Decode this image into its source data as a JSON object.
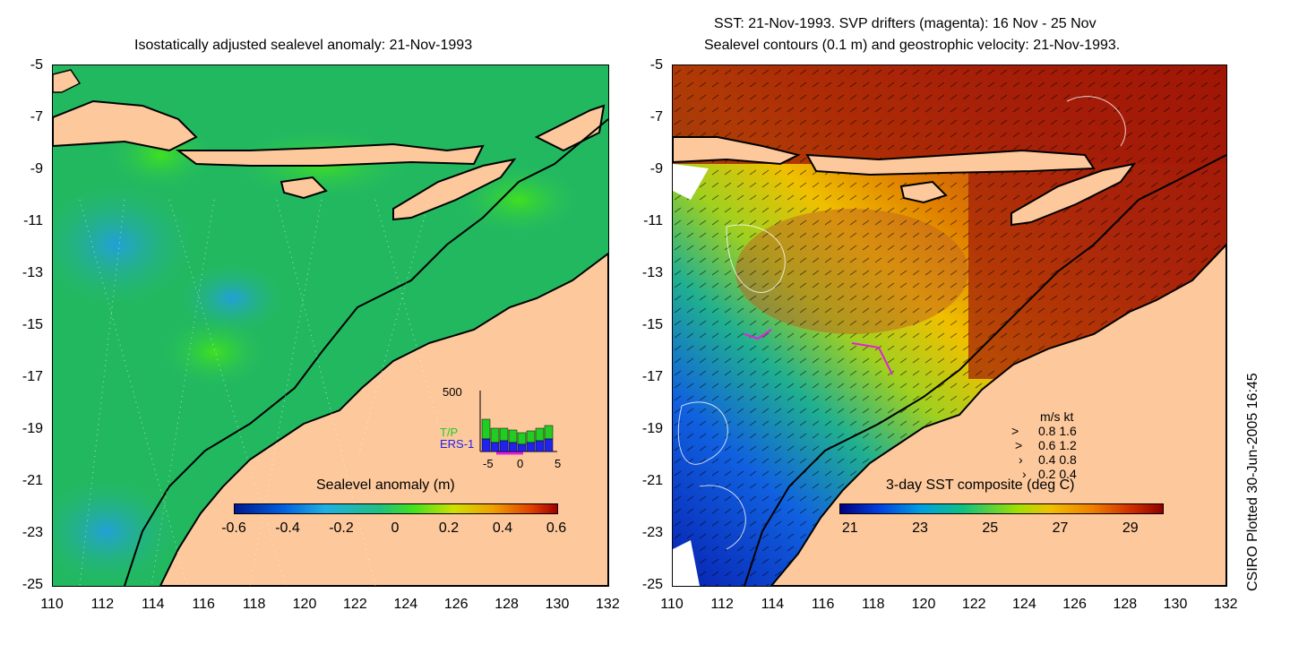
{
  "left_panel": {
    "title": "Isostatically adjusted sealevel anomaly: 21-Nov-1993",
    "y_ticks": [
      "-5",
      "-7",
      "-9",
      "-11",
      "-13",
      "-15",
      "-17",
      "-19",
      "-21",
      "-23",
      "-25"
    ],
    "x_ticks": [
      "110",
      "112",
      "114",
      "116",
      "118",
      "120",
      "122",
      "124",
      "126",
      "128",
      "130",
      "132"
    ],
    "colorbar": {
      "label": "Sealevel anomaly (m)",
      "ticks": [
        "-0.6",
        "-0.4",
        "-0.2",
        "0",
        "0.2",
        "0.4",
        "0.6"
      ]
    },
    "inset_histogram": {
      "ymax_label": "500",
      "legend_tp": "T/P",
      "legend_ers": "ERS-1",
      "x_ticks": [
        "-5",
        "0",
        "5"
      ],
      "tp_color": "#22cc22",
      "ers_color": "#2222ee"
    }
  },
  "right_panel": {
    "title_line1": "SST: 21-Nov-1993. SVP drifters (magenta): 16 Nov - 25 Nov",
    "title_line2": "Sealevel contours (0.1 m) and geostrophic velocity: 21-Nov-1993.",
    "y_ticks": [
      "-5",
      "-7",
      "-9",
      "-11",
      "-13",
      "-15",
      "-17",
      "-19",
      "-21",
      "-23",
      "-25"
    ],
    "x_ticks": [
      "110",
      "112",
      "114",
      "116",
      "118",
      "120",
      "122",
      "124",
      "126",
      "128",
      "130",
      "132"
    ],
    "colorbar": {
      "label": "3-day SST composite (deg C)",
      "ticks": [
        "21",
        "23",
        "25",
        "27",
        "29"
      ]
    },
    "velocity_legend": {
      "header": "m/s  kt",
      "rows": [
        "0.8  1.6",
        "0.6  1.2",
        "0.4  0.8",
        "0.2  0.4"
      ]
    }
  },
  "credit": "CSIRO Plotted 30-Jun-2005 16:45",
  "colors": {
    "land": "#fcc89c",
    "ocean_green": "#20b060",
    "sst_warm": "#b02010",
    "sst_cool": "#1040c0"
  }
}
